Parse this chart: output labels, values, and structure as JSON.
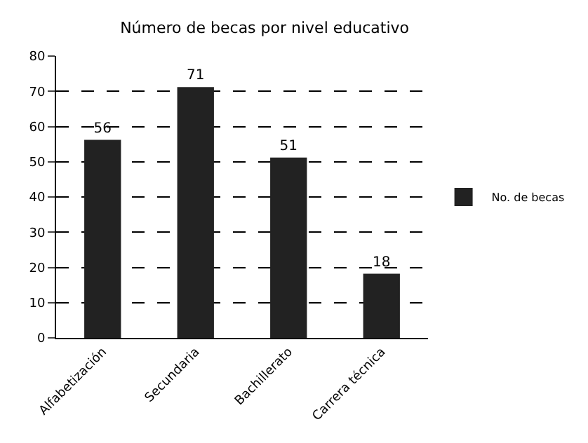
{
  "chart_data": {
    "type": "bar",
    "title": "Número de becas por nivel educativo",
    "categories": [
      "Alfabetización",
      "Secundaria",
      "Bachillerato",
      "Carrera técnica"
    ],
    "series": [
      {
        "name": "No. de becas",
        "color": "#222222",
        "values": [
          56,
          71,
          51,
          18
        ]
      }
    ],
    "ylim": [
      0,
      80
    ],
    "yticks": [
      0,
      10,
      20,
      30,
      40,
      50,
      60,
      70,
      80
    ],
    "grid": "y",
    "legend": "right",
    "data_labels": true
  }
}
